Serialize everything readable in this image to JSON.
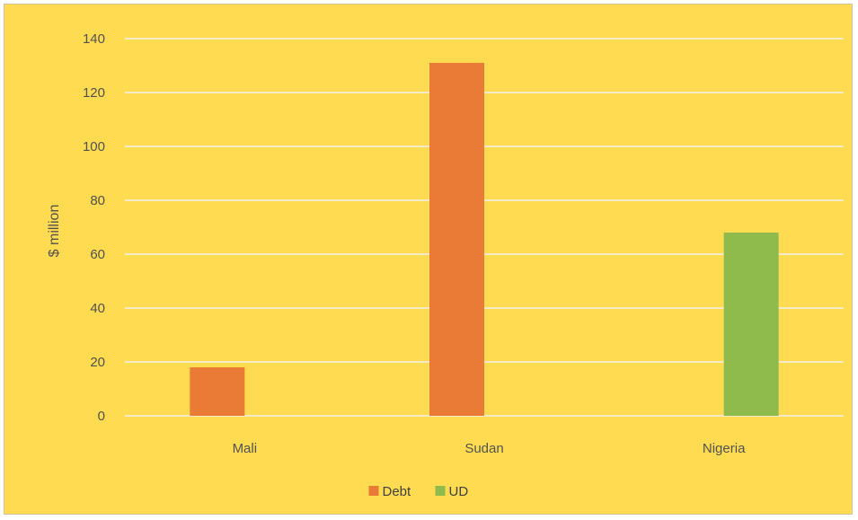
{
  "chart_data": {
    "type": "bar",
    "title": "",
    "xlabel": "",
    "ylabel": "$ million",
    "categories": [
      "Mali",
      "Sudan",
      "Nigeria"
    ],
    "series": [
      {
        "name": "Debt",
        "color": "#e97b37",
        "values": [
          18,
          131,
          null
        ]
      },
      {
        "name": "UD",
        "color": "#8fbb4c",
        "values": [
          null,
          null,
          68
        ]
      }
    ],
    "ylim": [
      0,
      140
    ],
    "yticks": [
      0,
      20,
      40,
      60,
      80,
      100,
      120,
      140
    ],
    "grid": true,
    "legend_position": "bottom",
    "background_color": "#fedb51",
    "gridline_color": "#efefef"
  }
}
